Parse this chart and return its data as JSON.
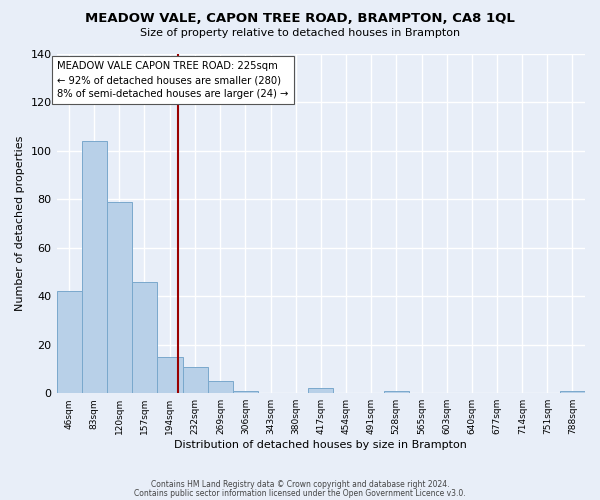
{
  "title_line1": "MEADOW VALE, CAPON TREE ROAD, BRAMPTON, CA8 1QL",
  "title_line2": "Size of property relative to detached houses in Brampton",
  "xlabel": "Distribution of detached houses by size in Brampton",
  "ylabel": "Number of detached properties",
  "bin_labels": [
    "46sqm",
    "83sqm",
    "120sqm",
    "157sqm",
    "194sqm",
    "232sqm",
    "269sqm",
    "306sqm",
    "343sqm",
    "380sqm",
    "417sqm",
    "454sqm",
    "491sqm",
    "528sqm",
    "565sqm",
    "603sqm",
    "640sqm",
    "677sqm",
    "714sqm",
    "751sqm",
    "788sqm"
  ],
  "bin_edges": [
    46,
    83,
    120,
    157,
    194,
    232,
    269,
    306,
    343,
    380,
    417,
    454,
    491,
    528,
    565,
    603,
    640,
    677,
    714,
    751,
    788,
    825
  ],
  "bar_heights": [
    42,
    104,
    79,
    46,
    15,
    11,
    5,
    1,
    0,
    0,
    2,
    0,
    0,
    1,
    0,
    0,
    0,
    0,
    0,
    0,
    1
  ],
  "bar_color": "#b8d0e8",
  "bar_edge_color": "#7aa8cc",
  "background_color": "#e8eef8",
  "grid_color": "#ffffff",
  "property_size": 225,
  "vline_color": "#990000",
  "annotation_text_line1": "MEADOW VALE CAPON TREE ROAD: 225sqm",
  "annotation_text_line2": "← 92% of detached houses are smaller (280)",
  "annotation_text_line3": "8% of semi-detached houses are larger (24) →",
  "annotation_box_color": "#ffffff",
  "annotation_border_color": "#555555",
  "ylim": [
    0,
    140
  ],
  "yticks": [
    0,
    20,
    40,
    60,
    80,
    100,
    120,
    140
  ],
  "footer_line1": "Contains HM Land Registry data © Crown copyright and database right 2024.",
  "footer_line2": "Contains public sector information licensed under the Open Government Licence v3.0."
}
